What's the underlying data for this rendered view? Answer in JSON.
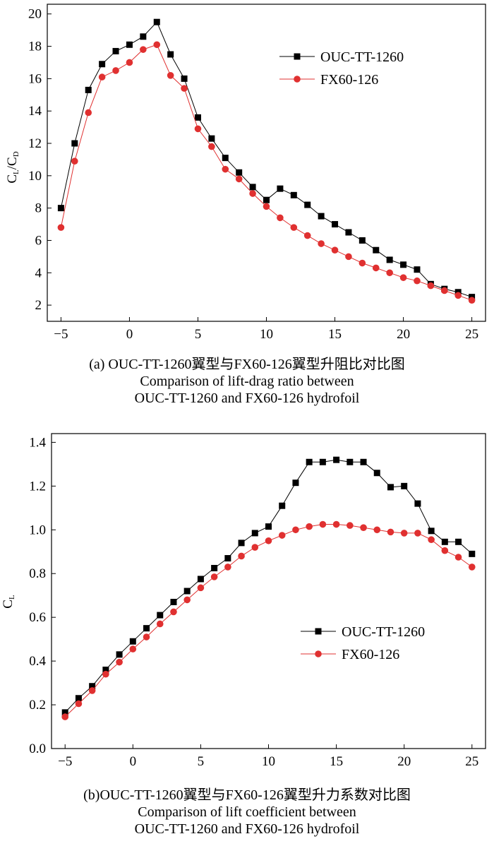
{
  "chart_data": [
    {
      "type": "line",
      "panel": "a",
      "ylabel": "C_L/C_D",
      "ylabel_main": "C",
      "ylabel_sub1": "L",
      "ylabel_mid": "/C",
      "ylabel_sub2": "D",
      "xlabel": "",
      "xlim": [
        -6,
        26
      ],
      "ylim": [
        1,
        20.6
      ],
      "xticks": [
        -5,
        0,
        5,
        10,
        15,
        20,
        25
      ],
      "xtick_labels": [
        "−5",
        "0",
        "5",
        "10",
        "15",
        "20",
        "25"
      ],
      "yticks": [
        2,
        4,
        6,
        8,
        10,
        12,
        14,
        16,
        18,
        20
      ],
      "ytick_labels": [
        "2",
        "4",
        "6",
        "8",
        "10",
        "12",
        "14",
        "16",
        "18",
        "20"
      ],
      "legend_position": "top-right",
      "caption": [
        "(a) OUC-TT-1260翼型与FX60-126翼型升阻比对比图",
        "Comparison of lift-drag ratio between",
        "OUC-TT-1260 and FX60-126 hydrofoil"
      ],
      "series": [
        {
          "name": "OUC-TT-1260",
          "color": "#000000",
          "marker": "square",
          "x": [
            -5,
            -4,
            -3,
            -2,
            -1,
            0,
            1,
            2,
            3,
            4,
            5,
            6,
            7,
            8,
            9,
            10,
            11,
            12,
            13,
            14,
            15,
            16,
            17,
            18,
            19,
            20,
            21,
            22,
            23,
            24,
            25
          ],
          "y": [
            8.0,
            12.0,
            15.3,
            16.9,
            17.7,
            18.1,
            18.6,
            19.5,
            17.5,
            16.0,
            13.6,
            12.3,
            11.1,
            10.2,
            9.3,
            8.5,
            9.2,
            8.8,
            8.2,
            7.5,
            7.0,
            6.5,
            6.0,
            5.4,
            4.8,
            4.5,
            4.2,
            3.3,
            3.0,
            2.8,
            2.5
          ]
        },
        {
          "name": "FX60-126",
          "color": "#e03030",
          "marker": "circle",
          "x": [
            -5,
            -4,
            -3,
            -2,
            -1,
            0,
            1,
            2,
            3,
            4,
            5,
            6,
            7,
            8,
            9,
            10,
            11,
            12,
            13,
            14,
            15,
            16,
            17,
            18,
            19,
            20,
            21,
            22,
            23,
            24,
            25
          ],
          "y": [
            6.8,
            10.9,
            13.9,
            16.1,
            16.5,
            17.0,
            17.8,
            18.1,
            16.2,
            15.4,
            12.9,
            11.8,
            10.4,
            9.8,
            8.9,
            8.1,
            7.4,
            6.8,
            6.3,
            5.8,
            5.4,
            5.0,
            4.6,
            4.3,
            4.0,
            3.7,
            3.5,
            3.2,
            2.9,
            2.6,
            2.3
          ]
        }
      ]
    },
    {
      "type": "line",
      "panel": "b",
      "ylabel": "C_L",
      "ylabel_main": "C",
      "ylabel_sub1": "L",
      "xlabel": "",
      "xlim": [
        -6,
        26
      ],
      "ylim": [
        0,
        1.44
      ],
      "xticks": [
        -5,
        0,
        5,
        10,
        15,
        20,
        25
      ],
      "xtick_labels": [
        "−5",
        "0",
        "5",
        "10",
        "15",
        "20",
        "25"
      ],
      "yticks": [
        0,
        0.2,
        0.4,
        0.6,
        0.8,
        1.0,
        1.2,
        1.4
      ],
      "ytick_labels": [
        "0.0",
        "0.2",
        "0.4",
        "0.6",
        "0.8",
        "1.0",
        "1.2",
        "1.4"
      ],
      "legend_position": "center-right",
      "caption": [
        "(b)OUC-TT-1260翼型与FX60-126翼型升力系数对比图",
        "Comparison of lift coefficient between",
        "OUC-TT-1260 and FX60-126 hydrofoil"
      ],
      "series": [
        {
          "name": "OUC-TT-1260",
          "color": "#000000",
          "marker": "square",
          "x": [
            -5,
            -4,
            -3,
            -2,
            -1,
            0,
            1,
            2,
            3,
            4,
            5,
            6,
            7,
            8,
            9,
            10,
            11,
            12,
            13,
            14,
            15,
            16,
            17,
            18,
            19,
            20,
            21,
            22,
            23,
            24,
            25
          ],
          "y": [
            0.165,
            0.23,
            0.285,
            0.36,
            0.43,
            0.49,
            0.55,
            0.61,
            0.67,
            0.72,
            0.775,
            0.825,
            0.87,
            0.94,
            0.985,
            1.015,
            1.11,
            1.215,
            1.31,
            1.31,
            1.32,
            1.31,
            1.31,
            1.26,
            1.195,
            1.2,
            1.12,
            0.995,
            0.945,
            0.945,
            0.89
          ]
        },
        {
          "name": "FX60-126",
          "color": "#e03030",
          "marker": "circle",
          "x": [
            -5,
            -4,
            -3,
            -2,
            -1,
            0,
            1,
            2,
            3,
            4,
            5,
            6,
            7,
            8,
            9,
            10,
            11,
            12,
            13,
            14,
            15,
            16,
            17,
            18,
            19,
            20,
            21,
            22,
            23,
            24,
            25
          ],
          "y": [
            0.145,
            0.205,
            0.265,
            0.34,
            0.395,
            0.455,
            0.51,
            0.57,
            0.625,
            0.68,
            0.735,
            0.785,
            0.83,
            0.88,
            0.92,
            0.95,
            0.975,
            1.0,
            1.015,
            1.025,
            1.025,
            1.02,
            1.01,
            1.0,
            0.99,
            0.985,
            0.985,
            0.955,
            0.905,
            0.875,
            0.83
          ]
        }
      ]
    }
  ]
}
